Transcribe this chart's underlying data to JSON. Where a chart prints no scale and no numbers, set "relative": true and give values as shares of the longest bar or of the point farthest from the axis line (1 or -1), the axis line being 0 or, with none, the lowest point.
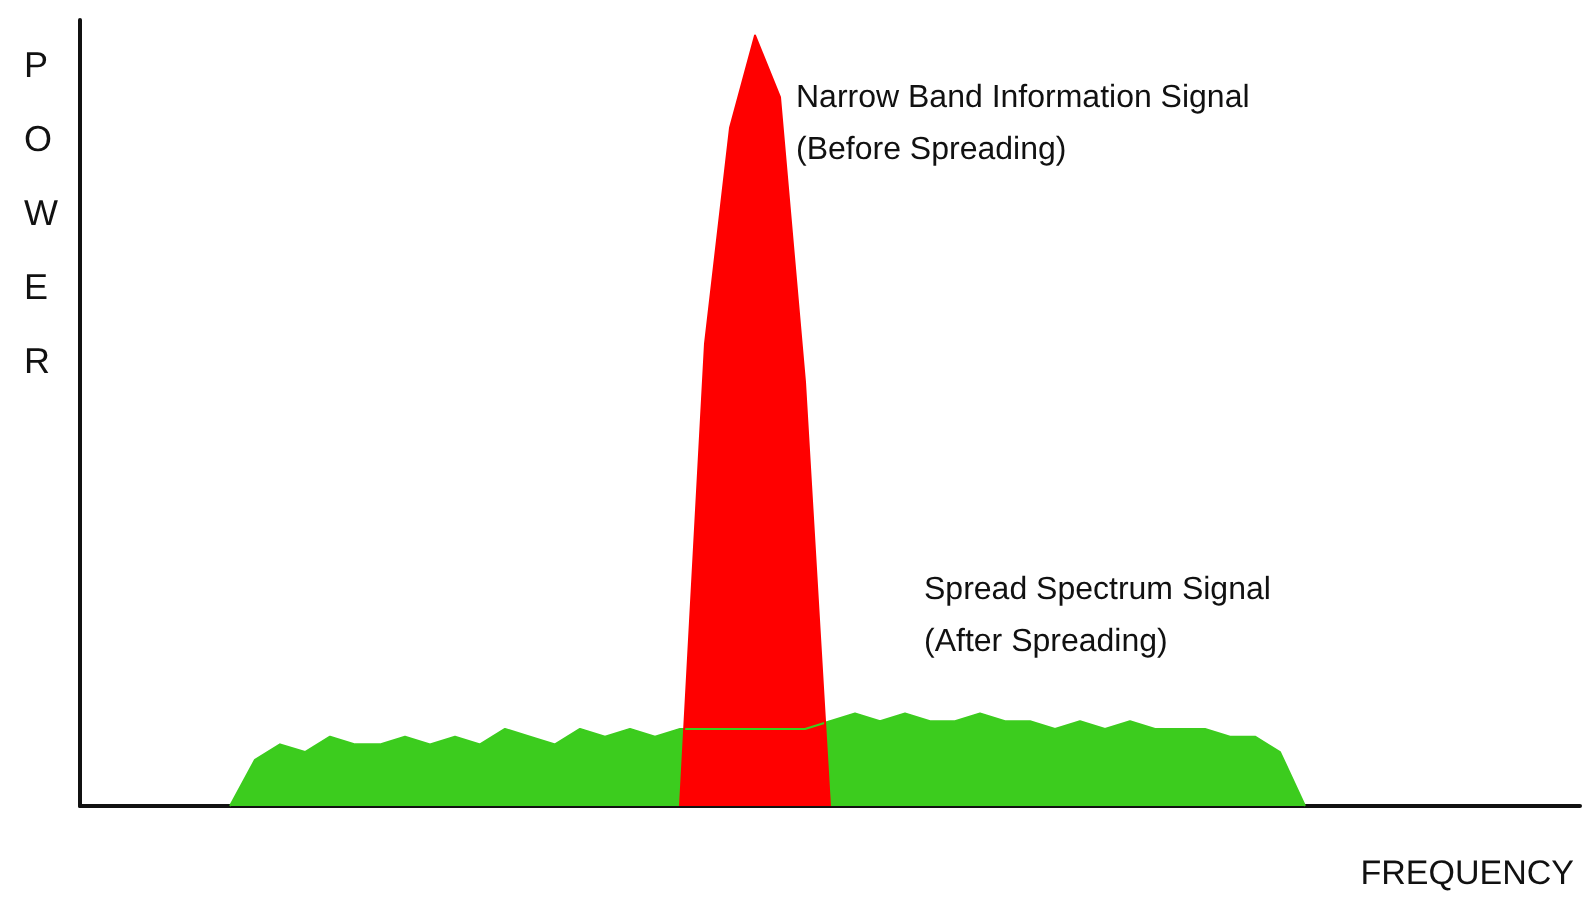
{
  "chart_data": {
    "type": "area",
    "relative": true,
    "xlabel": "FREQUENCY",
    "ylabel": "POWER",
    "annotations": [
      "Narrow Band Information Signal\n(Before Spreading)",
      "Spread Spectrum Signal\n(After Spreading)"
    ],
    "categories": [
      null,
      null,
      null,
      null,
      null,
      null,
      null,
      null,
      null,
      null,
      null,
      null,
      null,
      null,
      null,
      null,
      null,
      null,
      null,
      null,
      null,
      null,
      null,
      null,
      null,
      null,
      null,
      null,
      null,
      null,
      null,
      null,
      null,
      null,
      null,
      null,
      null,
      null,
      null,
      null,
      null,
      null,
      null,
      null,
      null,
      null,
      null,
      null,
      null,
      null,
      null,
      null,
      null,
      null,
      null,
      null,
      null,
      null,
      null,
      null,
      null
    ],
    "series": [
      {
        "color": "#3ccc1e",
        "values": [
          null,
          null,
          null,
          null,
          null,
          null,
          0,
          0.06,
          0.08,
          0.07,
          0.09,
          0.08,
          0.08,
          0.09,
          0.08,
          0.09,
          0.08,
          0.1,
          0.09,
          0.08,
          0.1,
          0.09,
          0.1,
          0.09,
          0.1,
          0.1,
          0.1,
          0.1,
          0.1,
          0.1,
          0.11,
          0.12,
          0.11,
          0.12,
          0.11,
          0.11,
          0.12,
          0.11,
          0.11,
          0.1,
          0.11,
          0.1,
          0.11,
          0.1,
          0.1,
          0.1,
          0.09,
          0.09,
          0.07,
          0,
          null,
          null,
          null,
          null,
          null,
          null,
          null,
          null,
          null,
          null,
          null
        ]
      },
      {
        "color": "#ff0000",
        "values": [
          null,
          null,
          null,
          null,
          null,
          null,
          null,
          null,
          null,
          null,
          null,
          null,
          null,
          null,
          null,
          null,
          null,
          null,
          null,
          null,
          null,
          null,
          null,
          null,
          0,
          0.6,
          0.88,
          1,
          0.92,
          0.55,
          0,
          null,
          null,
          null,
          null,
          null,
          null,
          null,
          null,
          null,
          null,
          null,
          null,
          null,
          null,
          null,
          null,
          null,
          null,
          null,
          null,
          null,
          null,
          null,
          null,
          null,
          null,
          null,
          null,
          null,
          null
        ]
      }
    ]
  }
}
